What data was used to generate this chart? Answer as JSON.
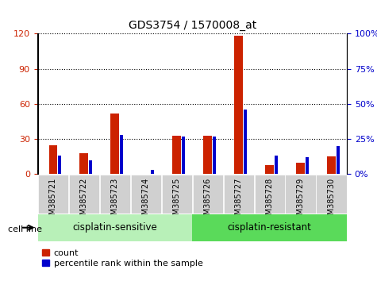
{
  "title": "GDS3754 / 1570008_at",
  "samples": [
    "GSM385721",
    "GSM385722",
    "GSM385723",
    "GSM385724",
    "GSM385725",
    "GSM385726",
    "GSM385727",
    "GSM385728",
    "GSM385729",
    "GSM385730"
  ],
  "count_values": [
    25,
    18,
    52,
    0,
    33,
    33,
    118,
    8,
    10,
    15
  ],
  "percentile_values": [
    13,
    10,
    28,
    3,
    27,
    27,
    46,
    13,
    12,
    20
  ],
  "groups": [
    {
      "label": "cisplatin-sensitive",
      "start": 0,
      "end": 5
    },
    {
      "label": "cisplatin-resistant",
      "start": 5,
      "end": 10
    }
  ],
  "group_colors": [
    "#b8f0b8",
    "#5ada5a"
  ],
  "bar_bg_color": "#d0d0d0",
  "plot_bg_color": "#ffffff",
  "count_color": "#cc2200",
  "percentile_color": "#0000cc",
  "left_yticks": [
    0,
    30,
    60,
    90,
    120
  ],
  "right_yticks": [
    0,
    25,
    50,
    75,
    100
  ],
  "left_ylim": [
    0,
    120
  ],
  "right_ylim": [
    0,
    100
  ],
  "left_ylabel_color": "#cc2200",
  "right_ylabel_color": "#0000cc",
  "cell_line_label": "cell line",
  "legend_count": "count",
  "legend_percentile": "percentile rank within the sample",
  "title_fontsize": 10,
  "tick_label_fontsize": 7,
  "group_label_fontsize": 8.5,
  "red_bar_width": 0.28,
  "blue_bar_width": 0.1
}
